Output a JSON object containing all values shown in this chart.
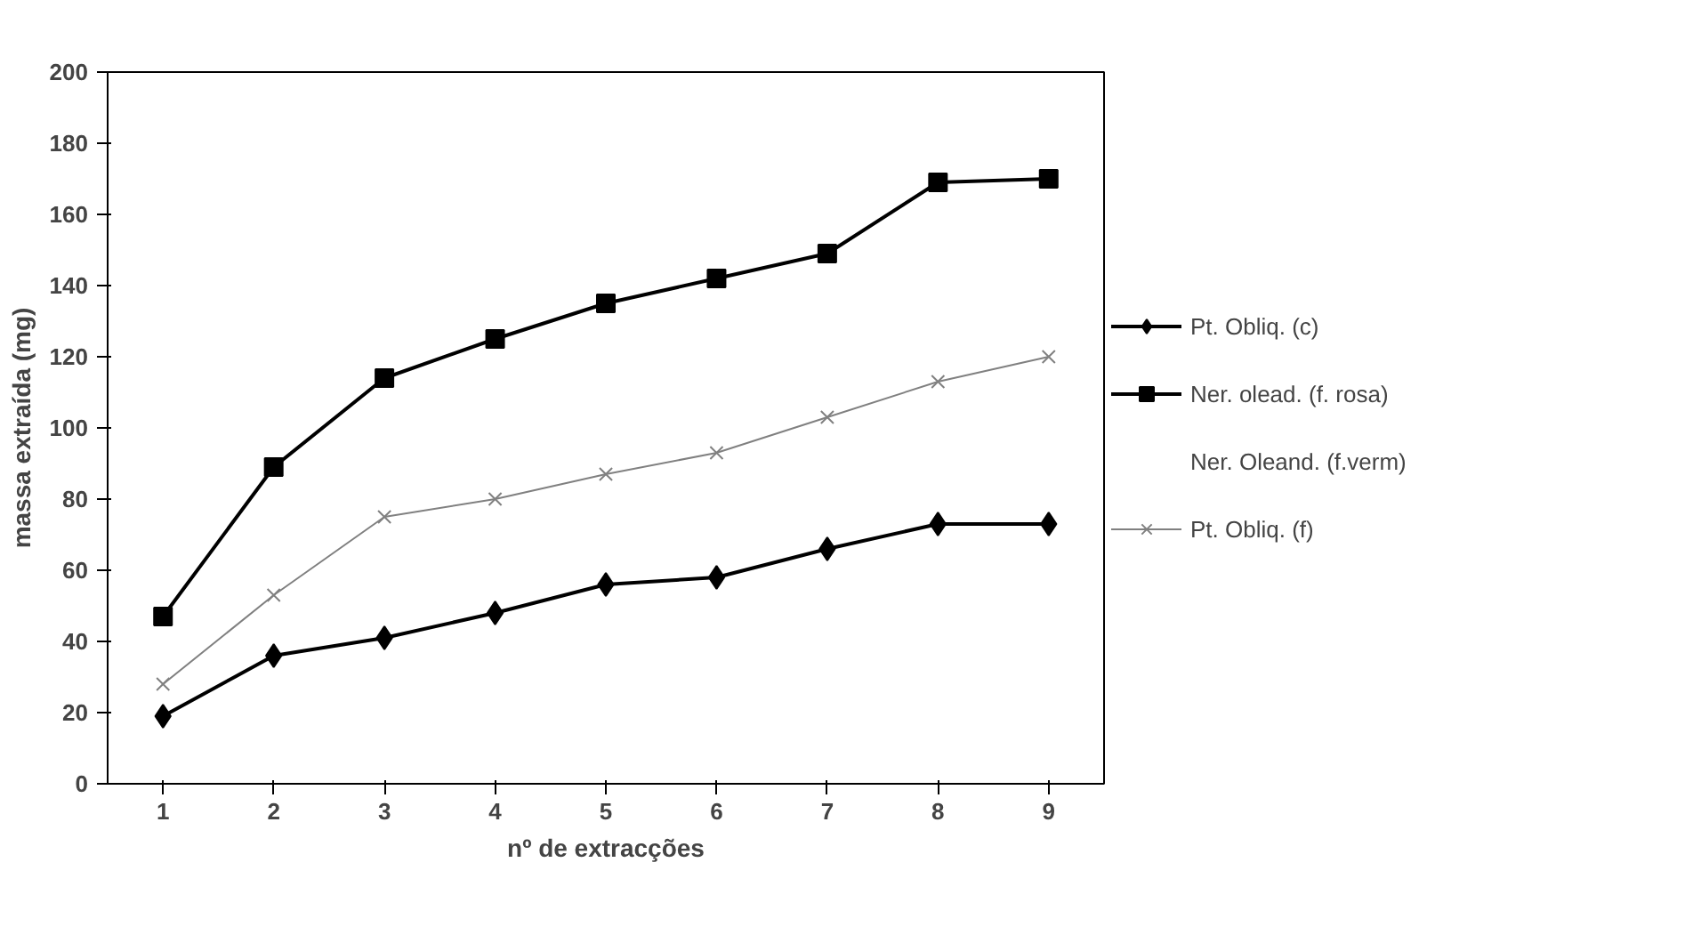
{
  "chart_data": {
    "type": "line",
    "xlabel": "nº de extracções",
    "ylabel": "massa extraída (mg)",
    "categories": [
      "1",
      "2",
      "3",
      "4",
      "5",
      "6",
      "7",
      "8",
      "9"
    ],
    "ylim": [
      0,
      200
    ],
    "yticks": [
      0,
      20,
      40,
      60,
      80,
      100,
      120,
      140,
      160,
      180,
      200
    ],
    "grid": false,
    "legend": "right",
    "series": [
      {
        "name": "Pt. Obliq. (c)",
        "color": "#000000",
        "marker": "diamond",
        "values": [
          19,
          36,
          41,
          48,
          56,
          58,
          66,
          73,
          73
        ]
      },
      {
        "name": "Ner. olead. (f. rosa)",
        "color": "#000000",
        "marker": "square",
        "values": [
          47,
          89,
          114,
          125,
          135,
          142,
          149,
          169,
          170
        ]
      },
      {
        "name": "Ner. Oleand. (f.verm)",
        "marker": "none",
        "values": [
          null,
          null,
          null,
          null,
          null,
          null,
          null,
          null,
          null
        ]
      },
      {
        "name": "Pt. Obliq. (f)",
        "color": "#808080",
        "marker": "cross",
        "values": [
          28,
          53,
          75,
          80,
          87,
          93,
          103,
          113,
          120
        ]
      }
    ]
  }
}
